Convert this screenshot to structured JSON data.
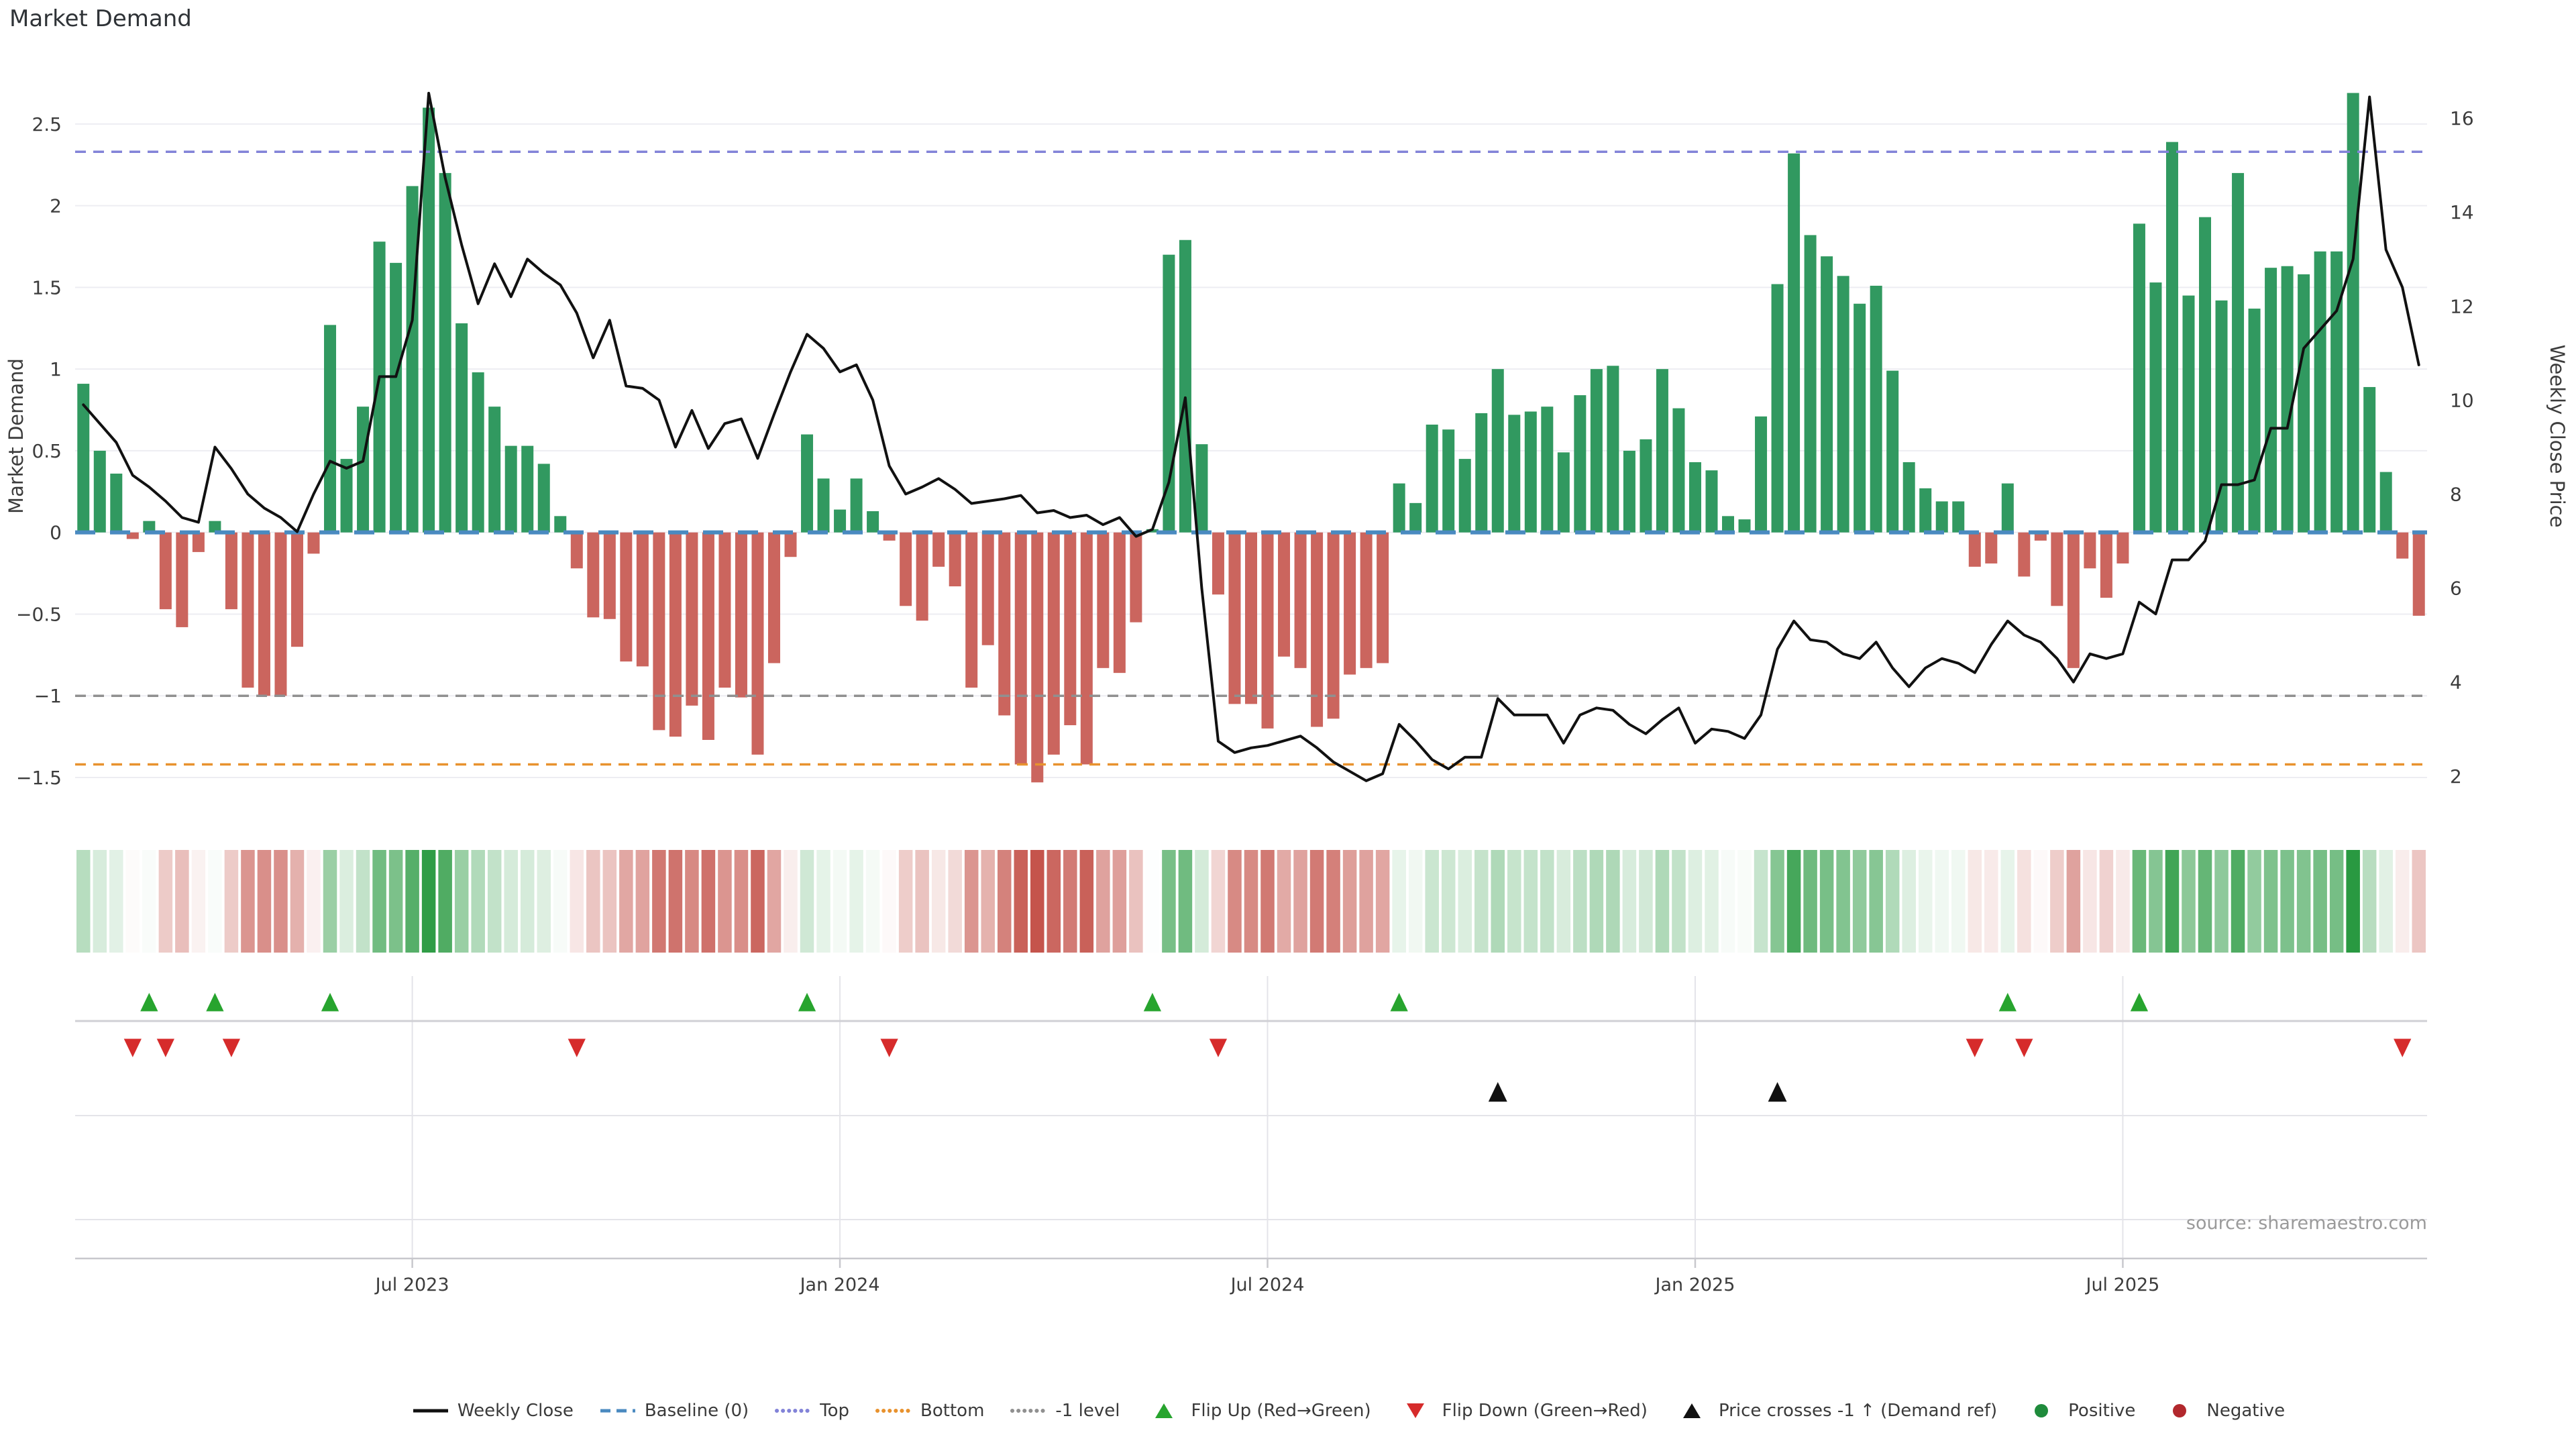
{
  "title": "Market Demand",
  "source": "source: sharemaestro.com",
  "axes": {
    "left_label": "Market Demand",
    "right_label": "Weekly Close Price",
    "left_ticks": [
      {
        "value": 2.5,
        "label": "2.5"
      },
      {
        "value": 2,
        "label": "2"
      },
      {
        "value": 1.5,
        "label": "1.5"
      },
      {
        "value": 1,
        "label": "1"
      },
      {
        "value": 0.5,
        "label": "0.5"
      },
      {
        "value": 0,
        "label": "0"
      },
      {
        "value": -0.5,
        "label": "−0.5"
      },
      {
        "value": -1,
        "label": "−1"
      },
      {
        "value": -1.5,
        "label": "−1.5"
      }
    ],
    "right_ticks": [
      {
        "value": 16,
        "label": "16"
      },
      {
        "value": 14,
        "label": "14"
      },
      {
        "value": 12,
        "label": "12"
      },
      {
        "value": 10,
        "label": "10"
      },
      {
        "value": 8,
        "label": "8"
      },
      {
        "value": 6,
        "label": "6"
      },
      {
        "value": 4,
        "label": "4"
      },
      {
        "value": 2,
        "label": "2"
      }
    ],
    "x_ticks": [
      {
        "week": 20,
        "label": "Jul 2023"
      },
      {
        "week": 46,
        "label": "Jan 2024"
      },
      {
        "week": 72,
        "label": "Jul 2024"
      },
      {
        "week": 98,
        "label": "Jan 2025"
      },
      {
        "week": 124,
        "label": "Jul 2025"
      }
    ]
  },
  "colors": {
    "bar_positive": "#319960",
    "bar_negative": "#cb655e",
    "price_line": "#111111",
    "baseline": "#4a8ac0",
    "top_level": "#8283d8",
    "bottom_level": "#e8922e",
    "minus1_level": "#909090",
    "flip_up": "#27a42e",
    "flip_down": "#d62b2b",
    "price_cross": "#111111",
    "positive_dot": "#1f8b3c",
    "negative_dot": "#b2282d",
    "heat_green": "#289940",
    "heat_red": "#c4524a",
    "grid": "#ededf2",
    "panel_grid": "#e4e4e9",
    "panel_sep": "#d0d0d5",
    "axis_line": "#c8c8cd",
    "tick_text": "#3c3c3c",
    "source_text": "#9a9a9a"
  },
  "chart_data": {
    "type": "bar+line",
    "title": "Market Demand",
    "xlabel": "",
    "ylabel_left": "Market Demand",
    "ylabel_right": "Weekly Close Price",
    "ylim_left": [
      -1.73,
      2.91
    ],
    "ylim_right": [
      1.17,
      17.3
    ],
    "grid": "horizontal",
    "legend_position": "bottom-center",
    "levels": {
      "baseline": 0,
      "top": 2.33,
      "bottom": -1.42,
      "minus1": -1
    },
    "n_weeks": 143,
    "series": [
      {
        "name": "Market Demand",
        "type": "bar",
        "axis": "left",
        "values": [
          0.91,
          0.5,
          0.36,
          -0.04,
          0.07,
          -0.47,
          -0.58,
          -0.12,
          0.07,
          -0.47,
          -0.95,
          -1.0,
          -1.0,
          -0.7,
          -0.13,
          1.27,
          0.45,
          0.77,
          1.78,
          1.65,
          2.12,
          2.6,
          2.2,
          1.28,
          0.98,
          0.77,
          0.53,
          0.53,
          0.42,
          0.1,
          -0.22,
          -0.52,
          -0.53,
          -0.79,
          -0.82,
          -1.21,
          -1.25,
          -1.06,
          -1.27,
          -0.95,
          -1.01,
          -1.36,
          -0.8,
          -0.15,
          0.6,
          0.33,
          0.14,
          0.33,
          0.13,
          -0.05,
          -0.45,
          -0.54,
          -0.21,
          -0.33,
          -0.95,
          -0.69,
          -1.12,
          -1.42,
          -1.53,
          -1.36,
          -1.18,
          -1.42,
          -0.83,
          -0.86,
          -0.55,
          0.02,
          1.7,
          1.79,
          0.54,
          -0.38,
          -1.05,
          -1.05,
          -1.2,
          -0.76,
          -0.83,
          -1.19,
          -1.14,
          -0.87,
          -0.83,
          -0.8,
          0.3,
          0.18,
          0.66,
          0.63,
          0.45,
          0.73,
          1.0,
          0.72,
          0.74,
          0.77,
          0.49,
          0.84,
          1.0,
          1.02,
          0.5,
          0.57,
          1.0,
          0.76,
          0.43,
          0.38,
          0.1,
          0.08,
          0.71,
          1.52,
          2.32,
          1.82,
          1.69,
          1.57,
          1.4,
          1.51,
          0.99,
          0.43,
          0.27,
          0.19,
          0.19,
          -0.21,
          -0.19,
          0.3,
          -0.27,
          -0.05,
          -0.45,
          -0.83,
          -0.22,
          -0.4,
          -0.19,
          1.89,
          1.53,
          2.39,
          1.45,
          1.93,
          1.42,
          2.2,
          1.37,
          1.62,
          1.63,
          1.58,
          1.72,
          1.72,
          2.69,
          0.89,
          0.37,
          -0.16,
          -0.51
        ]
      },
      {
        "name": "Weekly Close",
        "type": "line",
        "axis": "right",
        "values": [
          9.9,
          9.5,
          9.1,
          8.4,
          8.15,
          7.85,
          7.5,
          7.4,
          9.0,
          8.54,
          8.0,
          7.7,
          7.5,
          7.2,
          8.0,
          8.7,
          8.55,
          8.7,
          10.5,
          10.5,
          11.7,
          16.53,
          14.73,
          13.3,
          12.05,
          12.9,
          12.2,
          13.0,
          12.7,
          12.45,
          11.85,
          10.9,
          11.7,
          10.3,
          10.25,
          10.0,
          9.0,
          9.78,
          8.97,
          9.5,
          9.6,
          8.76,
          9.7,
          10.6,
          11.4,
          11.1,
          10.6,
          10.75,
          10.0,
          8.6,
          8.0,
          8.15,
          8.33,
          8.1,
          7.8,
          7.85,
          7.9,
          7.97,
          7.6,
          7.65,
          7.5,
          7.55,
          7.35,
          7.5,
          7.1,
          7.25,
          8.25,
          10.05,
          6.0,
          2.74,
          2.5,
          2.6,
          2.65,
          2.75,
          2.85,
          2.6,
          2.3,
          2.1,
          1.9,
          2.05,
          3.1,
          2.75,
          2.35,
          2.15,
          2.4,
          2.4,
          3.65,
          3.3,
          3.3,
          3.3,
          2.7,
          3.3,
          3.45,
          3.4,
          3.1,
          2.9,
          3.2,
          3.45,
          2.7,
          3.0,
          2.95,
          2.8,
          3.3,
          4.7,
          5.3,
          4.9,
          4.85,
          4.6,
          4.5,
          4.85,
          4.3,
          3.9,
          4.3,
          4.5,
          4.4,
          4.2,
          4.8,
          5.3,
          5.0,
          4.85,
          4.5,
          4.0,
          4.6,
          4.5,
          4.6,
          5.7,
          5.45,
          6.6,
          6.6,
          7.0,
          8.2,
          8.2,
          8.3,
          9.4,
          9.4,
          11.1,
          11.5,
          11.9,
          13.0,
          16.45,
          13.2,
          12.4,
          10.75
        ]
      }
    ],
    "heatmap": {
      "note": "one cell per week, color intensity from Market Demand value",
      "green_full_scale": 2.7,
      "red_full_scale": 1.55
    },
    "markers": {
      "flip_up_weeks": [
        4,
        8,
        15,
        44,
        65,
        80,
        117,
        125
      ],
      "flip_down_weeks": [
        3,
        5,
        9,
        30,
        49,
        69,
        115,
        118,
        141
      ],
      "price_cross_weeks": [
        86,
        103
      ]
    }
  },
  "legend": {
    "items": [
      {
        "label": "Weekly Close",
        "type": "line",
        "color": "#111111"
      },
      {
        "label": "Baseline (0)",
        "type": "dashed",
        "color": "#4a8ac0"
      },
      {
        "label": "Top",
        "type": "dotted",
        "color": "#8283d8"
      },
      {
        "label": "Bottom",
        "type": "dotted",
        "color": "#e8922e"
      },
      {
        "label": "-1 level",
        "type": "dotted",
        "color": "#909090"
      },
      {
        "label": "Flip Up (Red→Green)",
        "type": "triangle-up",
        "color": "#27a42e"
      },
      {
        "label": "Flip Down (Green→Red)",
        "type": "triangle-down",
        "color": "#d62b2b"
      },
      {
        "label": "Price crosses -1 ↑ (Demand ref)",
        "type": "triangle-up",
        "color": "#111111"
      },
      {
        "label": "Positive",
        "type": "circle",
        "color": "#1f8b3c"
      },
      {
        "label": "Negative",
        "type": "circle",
        "color": "#b2282d"
      }
    ]
  }
}
